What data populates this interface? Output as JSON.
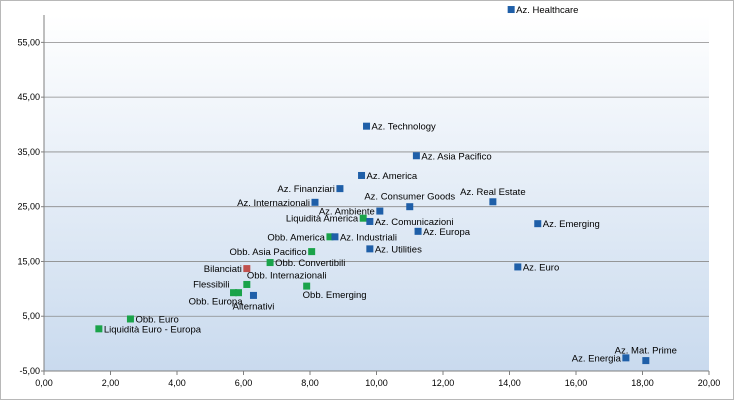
{
  "chart_data": {
    "type": "scatter",
    "title": "",
    "xlabel": "",
    "ylabel": "",
    "xlim": [
      0,
      20
    ],
    "ylim": [
      -5,
      60
    ],
    "x_ticks": [
      "0,00",
      "2,00",
      "4,00",
      "6,00",
      "8,00",
      "10,00",
      "12,00",
      "14,00",
      "16,00",
      "18,00",
      "20,00"
    ],
    "x_tick_values": [
      0,
      2,
      4,
      6,
      8,
      10,
      12,
      14,
      16,
      18,
      20
    ],
    "y_ticks": [
      "-5,00",
      "5,00",
      "15,00",
      "25,00",
      "35,00",
      "45,00",
      "55,00"
    ],
    "y_tick_values": [
      -5,
      5,
      15,
      25,
      35,
      45,
      55
    ],
    "grid": "horizontal",
    "colors": {
      "azionari": "#1f5fa8",
      "obbligazionari": "#1aa34a",
      "bilanciati": "#c0504d"
    },
    "points": [
      {
        "label": "Az. Healthcare",
        "x": 14.05,
        "y": 61.0,
        "group": "azionari",
        "anchor": "right"
      },
      {
        "label": "Az. Technology",
        "x": 9.7,
        "y": 39.7,
        "group": "azionari",
        "anchor": "right"
      },
      {
        "label": "Az. Asia Pacifico",
        "x": 11.2,
        "y": 34.3,
        "group": "azionari",
        "anchor": "right"
      },
      {
        "label": "Az. America",
        "x": 9.55,
        "y": 30.7,
        "group": "azionari",
        "anchor": "right"
      },
      {
        "label": "Az. Finanziari",
        "x": 8.9,
        "y": 28.3,
        "group": "azionari",
        "anchor": "left"
      },
      {
        "label": "Az. Internazionali",
        "x": 8.15,
        "y": 25.8,
        "group": "azionari",
        "anchor": "left"
      },
      {
        "label": "Az. Consumer Goods",
        "x": 11.0,
        "y": 25.0,
        "group": "azionari",
        "anchor": "above"
      },
      {
        "label": "Az. Ambiente",
        "x": 10.1,
        "y": 24.2,
        "group": "azionari",
        "anchor": "left"
      },
      {
        "label": "Liquidità America",
        "x": 9.6,
        "y": 22.9,
        "group": "obbligazionari",
        "anchor": "left"
      },
      {
        "label": "Az. Comunicazioni",
        "x": 9.8,
        "y": 22.3,
        "group": "azionari",
        "anchor": "right"
      },
      {
        "label": "Az. Real Estate",
        "x": 13.5,
        "y": 25.9,
        "group": "azionari",
        "anchor": "above"
      },
      {
        "label": "Az. Emerging",
        "x": 14.85,
        "y": 21.9,
        "group": "azionari",
        "anchor": "right"
      },
      {
        "label": "Az. Europa",
        "x": 11.25,
        "y": 20.5,
        "group": "azionari",
        "anchor": "right"
      },
      {
        "label": "Obb. America",
        "x": 8.6,
        "y": 19.5,
        "group": "obbligazionari",
        "anchor": "left"
      },
      {
        "label": "Az. Industriali",
        "x": 8.75,
        "y": 19.5,
        "group": "azionari",
        "anchor": "right"
      },
      {
        "label": "Az. Utilities",
        "x": 9.8,
        "y": 17.3,
        "group": "azionari",
        "anchor": "right"
      },
      {
        "label": "Obb. Asia Pacifico",
        "x": 8.05,
        "y": 16.8,
        "group": "obbligazionari",
        "anchor": "left"
      },
      {
        "label": "Obb. Convertibili",
        "x": 6.8,
        "y": 14.8,
        "group": "obbligazionari",
        "anchor": "right"
      },
      {
        "label": "Az. Euro",
        "x": 14.25,
        "y": 14.0,
        "group": "azionari",
        "anchor": "right"
      },
      {
        "label": "Bilanciati",
        "x": 6.1,
        "y": 13.7,
        "group": "bilanciati",
        "anchor": "left"
      },
      {
        "label": "Obb. Internazionali",
        "x": 6.1,
        "y": 10.8,
        "group": "obbligazionari",
        "anchor": "above-right"
      },
      {
        "label": "Flessibili",
        "x": 5.7,
        "y": 9.3,
        "group": "obbligazionari",
        "anchor": "above-left"
      },
      {
        "label": "Obb. Europa",
        "x": 5.85,
        "y": 9.3,
        "group": "obbligazionari",
        "anchor": "below-left"
      },
      {
        "label": "Alternativi",
        "x": 6.3,
        "y": 8.8,
        "group": "azionari",
        "anchor": "below"
      },
      {
        "label": "Obb. Emerging",
        "x": 7.9,
        "y": 10.5,
        "group": "obbligazionari",
        "anchor": "below-right"
      },
      {
        "label": "Obb. Euro",
        "x": 2.6,
        "y": 4.5,
        "group": "obbligazionari",
        "anchor": "right"
      },
      {
        "label": "Liquidità Euro - Europa",
        "x": 1.65,
        "y": 2.7,
        "group": "obbligazionari",
        "anchor": "right"
      },
      {
        "label": "Az. Energia",
        "x": 17.5,
        "y": -2.6,
        "group": "azionari",
        "anchor": "left"
      },
      {
        "label": "Az. Mat. Prime",
        "x": 18.1,
        "y": -3.1,
        "group": "azionari",
        "anchor": "above"
      }
    ]
  }
}
